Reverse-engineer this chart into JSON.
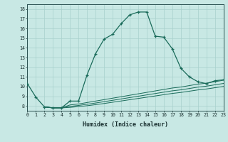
{
  "xlabel": "Humidex (Indice chaleur)",
  "bg_color": "#c8e8e4",
  "grid_color": "#a8d0cc",
  "line_color": "#1a6b5a",
  "xlim": [
    0,
    23
  ],
  "ylim": [
    7.5,
    18.5
  ],
  "yticks": [
    8,
    9,
    10,
    11,
    12,
    13,
    14,
    15,
    16,
    17,
    18
  ],
  "xtick_labels": [
    "0",
    "1",
    "2",
    "3",
    "4",
    "5",
    "6",
    "7",
    "8",
    "9",
    "10",
    "11",
    "12",
    "13",
    "14",
    "15",
    "16",
    "17",
    "18",
    "19",
    "20",
    "21",
    "22",
    "23"
  ],
  "main_x": [
    0,
    1,
    2,
    3,
    4,
    5,
    6,
    7,
    8,
    9,
    10,
    11,
    12,
    13,
    14,
    15,
    16,
    17,
    18,
    19,
    20,
    21,
    22,
    23
  ],
  "main_y": [
    10.3,
    8.9,
    7.9,
    7.8,
    7.8,
    8.5,
    8.5,
    11.2,
    13.4,
    14.9,
    15.4,
    16.5,
    17.4,
    17.7,
    17.7,
    15.2,
    15.1,
    13.9,
    11.9,
    11.0,
    10.5,
    10.3,
    10.6,
    10.7
  ],
  "flat1_x": [
    2,
    3,
    4,
    5,
    6,
    7,
    8,
    9,
    10,
    11,
    12,
    13,
    14,
    15,
    16,
    17,
    18,
    19,
    20,
    21,
    22,
    23
  ],
  "flat1_y": [
    7.9,
    7.8,
    7.8,
    8.1,
    8.2,
    8.35,
    8.5,
    8.65,
    8.8,
    8.95,
    9.1,
    9.25,
    9.4,
    9.55,
    9.7,
    9.85,
    9.95,
    10.1,
    10.25,
    10.35,
    10.5,
    10.65
  ],
  "flat2_x": [
    2,
    3,
    4,
    5,
    6,
    7,
    8,
    9,
    10,
    11,
    12,
    13,
    14,
    15,
    16,
    17,
    18,
    19,
    20,
    21,
    22,
    23
  ],
  "flat2_y": [
    7.9,
    7.8,
    7.8,
    7.95,
    8.05,
    8.17,
    8.3,
    8.44,
    8.58,
    8.72,
    8.86,
    9.0,
    9.14,
    9.28,
    9.42,
    9.56,
    9.66,
    9.8,
    9.94,
    10.04,
    10.18,
    10.32
  ],
  "flat3_x": [
    2,
    3,
    4,
    5,
    6,
    7,
    8,
    9,
    10,
    11,
    12,
    13,
    14,
    15,
    16,
    17,
    18,
    19,
    20,
    21,
    22,
    23
  ],
  "flat3_y": [
    7.9,
    7.8,
    7.8,
    7.85,
    7.93,
    8.02,
    8.13,
    8.25,
    8.38,
    8.51,
    8.64,
    8.77,
    8.9,
    9.03,
    9.16,
    9.29,
    9.39,
    9.52,
    9.65,
    9.75,
    9.88,
    10.01
  ]
}
